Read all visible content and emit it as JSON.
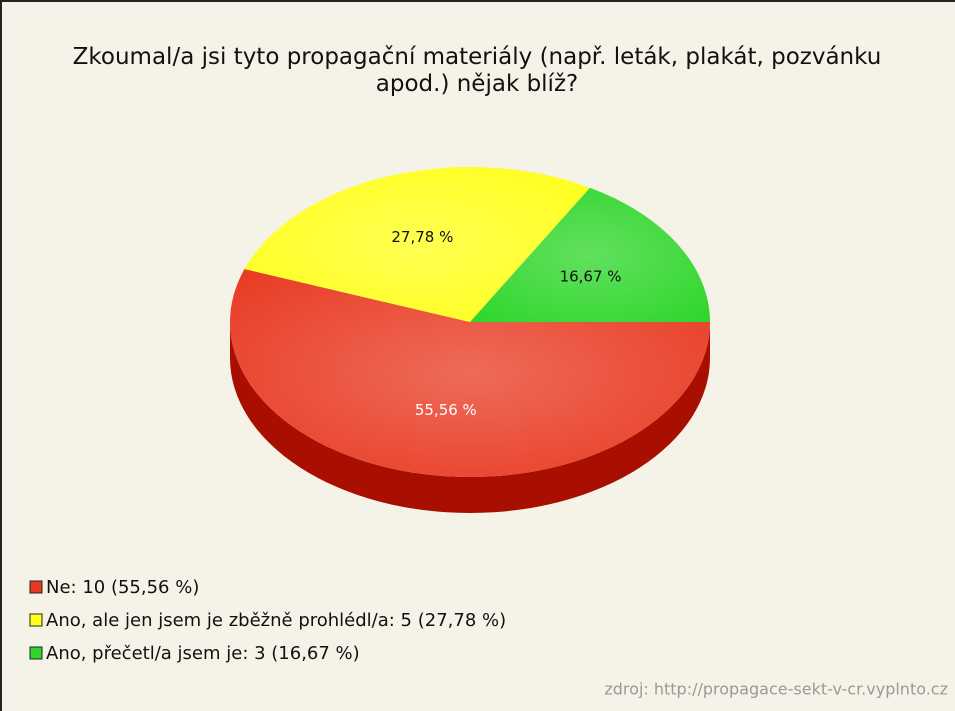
{
  "chart_data": {
    "type": "pie",
    "title": "Zkoumal/a jsi tyto propagační materiály (např. leták, plakát, pozvánku apod.) nějak blíž?",
    "categories": [
      "Ne: 10 (55,56 %)",
      "Ano, ale jen jsem je zběžně prohlédl/a: 5 (27,78 %)",
      "Ano, přečetl/a jsem je: 3 (16,67 %)"
    ],
    "values": [
      55.56,
      27.78,
      16.67
    ],
    "value_labels": [
      "55,56 %",
      "27,78 %",
      "16,67 %"
    ],
    "colors": [
      "#e83a22",
      "#ffff1a",
      "#2ed62a"
    ],
    "source": "zdroj: http://propagace-sekt-v-cr.vyplnto.cz"
  }
}
